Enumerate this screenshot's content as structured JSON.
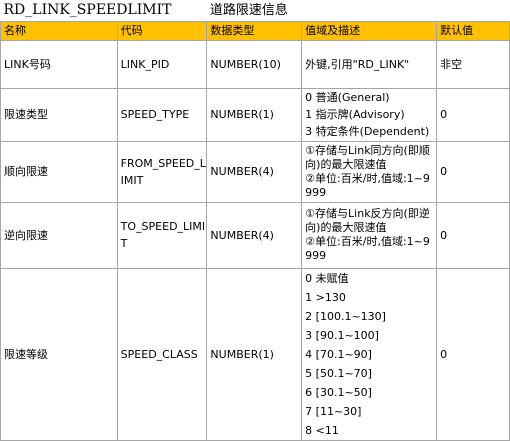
{
  "title": {
    "table_name": "RD_LINK_SPEEDLIMIT",
    "table_desc": "道路限速信息"
  },
  "headers": {
    "name": "名称",
    "code": "代码",
    "type": "数据类型",
    "domain": "值域及描述",
    "default": "默认值"
  },
  "rows": [
    {
      "name": "LINK号码",
      "code": "LINK_PID",
      "type": "NUMBER(10)",
      "domain": [
        "外键,引用\"RD_LINK\""
      ],
      "default": "非空"
    },
    {
      "name": "限速类型",
      "code": "SPEED_TYPE",
      "type": "NUMBER(1)",
      "domain": [
        "0 普通(General)",
        "1 指示牌(Advisory)",
        "3 特定条件(Dependent)"
      ],
      "default": "0"
    },
    {
      "name": "顺向限速",
      "code": "FROM_SPEED_LIMIT",
      "type": "NUMBER(4)",
      "domain": [
        "①存储与Link同方向(即顺向)的最大限速值",
        "②单位:百米/时,值域:1~9999"
      ],
      "default": "0"
    },
    {
      "name": "逆向限速",
      "code": "TO_SPEED_LIMIT",
      "type": "NUMBER(4)",
      "domain": [
        "①存储与Link反方向(即逆向)的最大限速值",
        "②单位:百米/时,值域:1~9999"
      ],
      "default": "0"
    },
    {
      "name": "限速等级",
      "code": "SPEED_CLASS",
      "type": "NUMBER(1)",
      "domain": [
        "0 未赋值",
        "1 >130",
        "2 [100.1~130]",
        "3 [90.1~100]",
        "4 [70.1~90]",
        "5 [50.1~70]",
        "6 [30.1~50]",
        "7 [11~30]",
        "8 <11"
      ],
      "default": "0"
    }
  ]
}
